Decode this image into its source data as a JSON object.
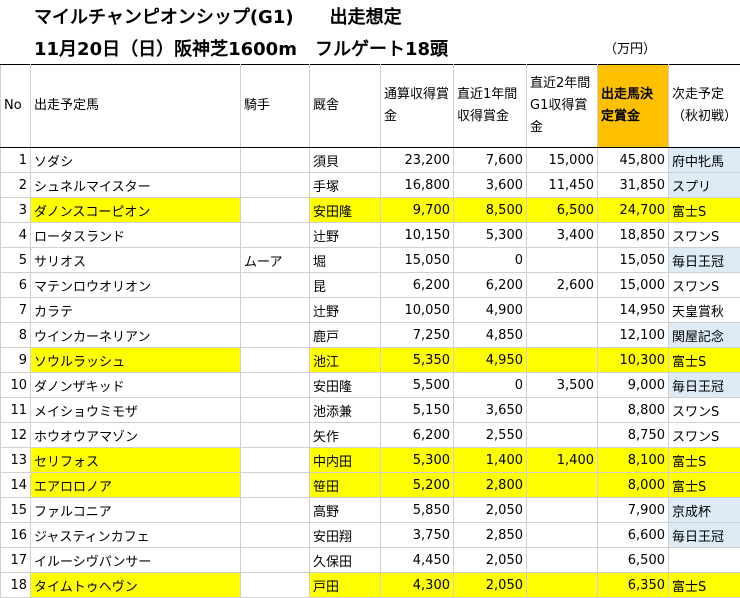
{
  "title1": "マイルチャンピオンシップ(G1)　　出走想定",
  "title2": "11月20日（日）阪神芝1600m　フルゲート18頭",
  "unit": "（万円）",
  "headers": {
    "no": "No",
    "horse": "出走予定馬",
    "jockey": "騎手",
    "stable": "厩舎",
    "total": "通算収得賞金",
    "recent1": "直近1年間収得賞金",
    "recent2": "直近2年間G1収得賞金",
    "decided": "出走馬決定賞金",
    "next": "次走予定（秋初戦）"
  },
  "rows": [
    {
      "no": "1",
      "horse": "ソダシ",
      "jockey": "",
      "stable": "須貝",
      "total": "23,200",
      "r1": "7,600",
      "r2": "15,000",
      "decided": "45,800",
      "next": "府中牝馬",
      "hl": false,
      "nb": true
    },
    {
      "no": "2",
      "horse": "シュネルマイスター",
      "jockey": "",
      "stable": "手塚",
      "total": "16,800",
      "r1": "3,600",
      "r2": "11,450",
      "decided": "31,850",
      "next": "スプリ",
      "hl": false,
      "nb": true
    },
    {
      "no": "3",
      "horse": "ダノンスコーピオン",
      "jockey": "",
      "stable": "安田隆",
      "total": "9,700",
      "r1": "8,500",
      "r2": "6,500",
      "decided": "24,700",
      "next": "富士S",
      "hl": true,
      "nb": false
    },
    {
      "no": "4",
      "horse": "ロータスランド",
      "jockey": "",
      "stable": "辻野",
      "total": "10,150",
      "r1": "5,300",
      "r2": "3,400",
      "decided": "18,850",
      "next": "スワンS",
      "hl": false,
      "nb": false
    },
    {
      "no": "5",
      "horse": "サリオス",
      "jockey": "ムーア",
      "stable": "堀",
      "total": "15,050",
      "r1": "0",
      "r2": "",
      "decided": "15,050",
      "next": "毎日王冠",
      "hl": false,
      "nb": true
    },
    {
      "no": "6",
      "horse": "マテンロウオリオン",
      "jockey": "",
      "stable": "昆",
      "total": "6,200",
      "r1": "6,200",
      "r2": "2,600",
      "decided": "15,000",
      "next": "スワンS",
      "hl": false,
      "nb": false
    },
    {
      "no": "7",
      "horse": "カラテ",
      "jockey": "",
      "stable": "辻野",
      "total": "10,050",
      "r1": "4,900",
      "r2": "",
      "decided": "14,950",
      "next": "天皇賞秋",
      "hl": false,
      "nb": false
    },
    {
      "no": "8",
      "horse": "ウインカーネリアン",
      "jockey": "",
      "stable": "鹿戸",
      "total": "7,250",
      "r1": "4,850",
      "r2": "",
      "decided": "12,100",
      "next": "関屋記念",
      "hl": false,
      "nb": true
    },
    {
      "no": "9",
      "horse": "ソウルラッシュ",
      "jockey": "",
      "stable": "池江",
      "total": "5,350",
      "r1": "4,950",
      "r2": "",
      "decided": "10,300",
      "next": "富士S",
      "hl": true,
      "nb": false
    },
    {
      "no": "10",
      "horse": "ダノンザキッド",
      "jockey": "",
      "stable": "安田隆",
      "total": "5,500",
      "r1": "0",
      "r2": "3,500",
      "decided": "9,000",
      "next": "毎日王冠",
      "hl": false,
      "nb": true
    },
    {
      "no": "11",
      "horse": "メイショウミモザ",
      "jockey": "",
      "stable": "池添兼",
      "total": "5,150",
      "r1": "3,650",
      "r2": "",
      "decided": "8,800",
      "next": "スワンS",
      "hl": false,
      "nb": false
    },
    {
      "no": "12",
      "horse": "ホウオウアマゾン",
      "jockey": "",
      "stable": "矢作",
      "total": "6,200",
      "r1": "2,550",
      "r2": "",
      "decided": "8,750",
      "next": "スワンS",
      "hl": false,
      "nb": false
    },
    {
      "no": "13",
      "horse": "セリフォス",
      "jockey": "",
      "stable": "中内田",
      "total": "5,300",
      "r1": "1,400",
      "r2": "1,400",
      "decided": "8,100",
      "next": "富士S",
      "hl": true,
      "nb": false
    },
    {
      "no": "14",
      "horse": "エアロロノア",
      "jockey": "",
      "stable": "笹田",
      "total": "5,200",
      "r1": "2,800",
      "r2": "",
      "decided": "8,000",
      "next": "富士S",
      "hl": true,
      "nb": false
    },
    {
      "no": "15",
      "horse": "ファルコニア",
      "jockey": "",
      "stable": "高野",
      "total": "5,850",
      "r1": "2,050",
      "r2": "",
      "decided": "7,900",
      "next": "京成杯",
      "hl": false,
      "nb": true
    },
    {
      "no": "16",
      "horse": "ジャスティンカフェ",
      "jockey": "",
      "stable": "安田翔",
      "total": "3,750",
      "r1": "2,850",
      "r2": "",
      "decided": "6,600",
      "next": "毎日王冠",
      "hl": false,
      "nb": true
    },
    {
      "no": "17",
      "horse": "イルーシヴパンサー",
      "jockey": "",
      "stable": "久保田",
      "total": "4,450",
      "r1": "2,050",
      "r2": "",
      "decided": "6,500",
      "next": "",
      "hl": false,
      "nb": false
    },
    {
      "no": "18",
      "horse": "タイムトゥヘヴン",
      "jockey": "",
      "stable": "戸田",
      "total": "4,300",
      "r1": "2,050",
      "r2": "",
      "decided": "6,350",
      "next": "富士S",
      "hl": true,
      "nb": false
    }
  ]
}
